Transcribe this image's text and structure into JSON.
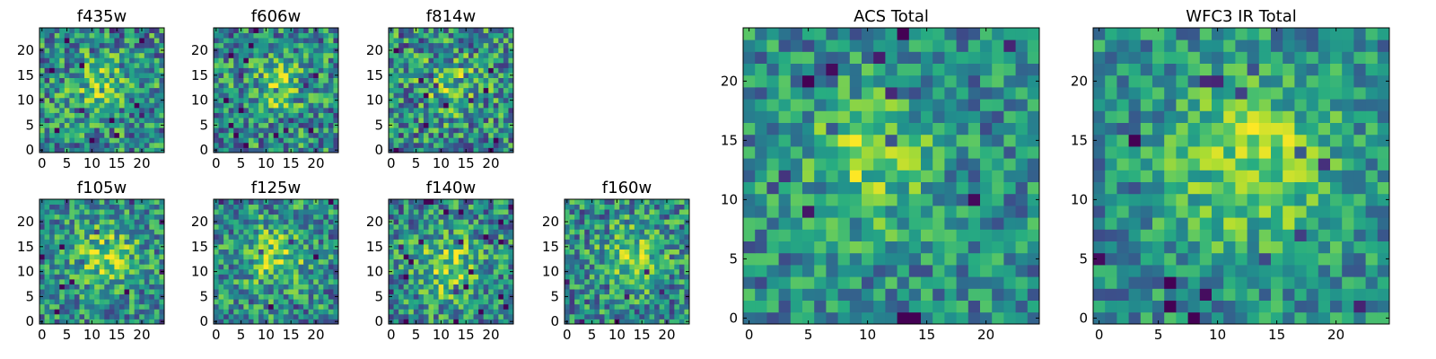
{
  "chart_data": {
    "type": "heatmap",
    "colormap": "viridis",
    "grid": false,
    "panels": [
      {
        "title": "f435w",
        "xlim": [
          -0.5,
          24.5
        ],
        "ylim": [
          -0.5,
          24.5
        ],
        "xticks": [
          0,
          5,
          10,
          15,
          20
        ],
        "yticks": [
          0,
          5,
          10,
          15,
          20
        ],
        "seed": 11,
        "noise": 0.34,
        "amp": 0.25,
        "sigma": 4.0,
        "cx": 12,
        "cy": 13,
        "grid_cells": 25
      },
      {
        "title": "f606w",
        "xlim": [
          -0.5,
          24.5
        ],
        "ylim": [
          -0.5,
          24.5
        ],
        "xticks": [
          0,
          5,
          10,
          15,
          20
        ],
        "yticks": [
          0,
          5,
          10,
          15,
          20
        ],
        "seed": 23,
        "noise": 0.34,
        "amp": 0.28,
        "sigma": 3.8,
        "cx": 12,
        "cy": 13,
        "grid_cells": 25
      },
      {
        "title": "f814w",
        "xlim": [
          -0.5,
          24.5
        ],
        "ylim": [
          -0.5,
          24.5
        ],
        "xticks": [
          0,
          5,
          10,
          15,
          20
        ],
        "yticks": [
          0,
          5,
          10,
          15,
          20
        ],
        "seed": 37,
        "noise": 0.36,
        "amp": 0.22,
        "sigma": 4.0,
        "cx": 12,
        "cy": 13,
        "grid_cells": 25
      },
      {
        "title": "f105w",
        "xlim": [
          -0.5,
          24.5
        ],
        "ylim": [
          -0.5,
          24.5
        ],
        "xticks": [
          0,
          5,
          10,
          15,
          20
        ],
        "yticks": [
          0,
          5,
          10,
          15,
          20
        ],
        "seed": 41,
        "noise": 0.3,
        "amp": 0.32,
        "sigma": 4.5,
        "cx": 13,
        "cy": 13,
        "grid_cells": 25
      },
      {
        "title": "f125w",
        "xlim": [
          -0.5,
          24.5
        ],
        "ylim": [
          -0.5,
          24.5
        ],
        "xticks": [
          0,
          5,
          10,
          15,
          20
        ],
        "yticks": [
          0,
          5,
          10,
          15,
          20
        ],
        "seed": 53,
        "noise": 0.32,
        "amp": 0.3,
        "sigma": 4.5,
        "cx": 12,
        "cy": 13,
        "grid_cells": 25
      },
      {
        "title": "f140w",
        "xlim": [
          -0.5,
          24.5
        ],
        "ylim": [
          -0.5,
          24.5
        ],
        "xticks": [
          0,
          5,
          10,
          15,
          20
        ],
        "yticks": [
          0,
          5,
          10,
          15,
          20
        ],
        "seed": 67,
        "noise": 0.32,
        "amp": 0.32,
        "sigma": 4.5,
        "cx": 11,
        "cy": 11,
        "grid_cells": 25
      },
      {
        "title": "f160w",
        "xlim": [
          -0.5,
          24.5
        ],
        "ylim": [
          -0.5,
          24.5
        ],
        "xticks": [
          0,
          5,
          10,
          15,
          20
        ],
        "yticks": [
          0,
          5,
          10,
          15,
          20
        ],
        "seed": 79,
        "noise": 0.32,
        "amp": 0.32,
        "sigma": 4.2,
        "cx": 13,
        "cy": 13,
        "grid_cells": 25
      },
      {
        "title": "ACS Total",
        "xlim": [
          -0.5,
          24.5
        ],
        "ylim": [
          -0.5,
          24.5
        ],
        "xticks": [
          0,
          5,
          10,
          15,
          20
        ],
        "yticks": [
          0,
          5,
          10,
          15,
          20
        ],
        "seed": 97,
        "noise": 0.26,
        "amp": 0.3,
        "sigma": 4.0,
        "cx": 10,
        "cy": 13,
        "grid_cells": 25
      },
      {
        "title": "WFC3 IR Total",
        "xlim": [
          -0.5,
          24.5
        ],
        "ylim": [
          -0.5,
          24.5
        ],
        "xticks": [
          0,
          5,
          10,
          15,
          20
        ],
        "yticks": [
          0,
          5,
          10,
          15,
          20
        ],
        "seed": 113,
        "noise": 0.24,
        "amp": 0.36,
        "sigma": 5.0,
        "cx": 13,
        "cy": 13,
        "grid_cells": 25
      }
    ]
  }
}
